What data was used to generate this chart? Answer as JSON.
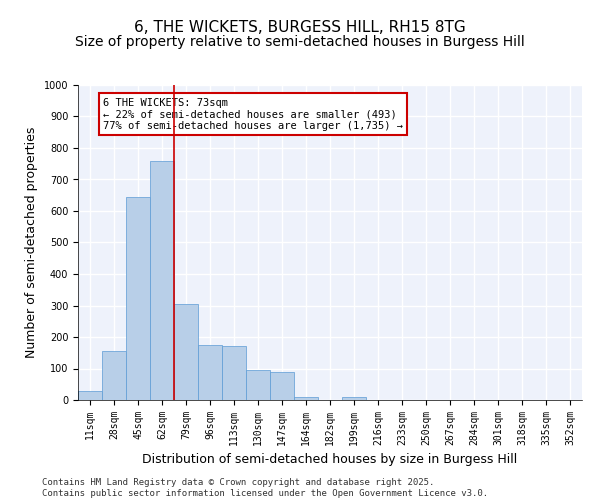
{
  "title1": "6, THE WICKETS, BURGESS HILL, RH15 8TG",
  "title2": "Size of property relative to semi-detached houses in Burgess Hill",
  "xlabel": "Distribution of semi-detached houses by size in Burgess Hill",
  "ylabel": "Number of semi-detached properties",
  "bin_labels": [
    "11sqm",
    "28sqm",
    "45sqm",
    "62sqm",
    "79sqm",
    "96sqm",
    "113sqm",
    "130sqm",
    "147sqm",
    "164sqm",
    "182sqm",
    "199sqm",
    "216sqm",
    "233sqm",
    "250sqm",
    "267sqm",
    "284sqm",
    "301sqm",
    "318sqm",
    "335sqm",
    "352sqm"
  ],
  "values": [
    30,
    155,
    645,
    760,
    305,
    175,
    170,
    95,
    90,
    10,
    0,
    10,
    0,
    0,
    0,
    0,
    0,
    0,
    0,
    0,
    0
  ],
  "bar_color": "#b8cfe8",
  "bar_edge_color": "#5b9bd5",
  "vline_color": "#cc0000",
  "vline_pos": 3.5,
  "annotation_text": "6 THE WICKETS: 73sqm\n← 22% of semi-detached houses are smaller (493)\n77% of semi-detached houses are larger (1,735) →",
  "annotation_box_color": "#cc0000",
  "ylim": [
    0,
    1000
  ],
  "yticks": [
    0,
    100,
    200,
    300,
    400,
    500,
    600,
    700,
    800,
    900,
    1000
  ],
  "footer": "Contains HM Land Registry data © Crown copyright and database right 2025.\nContains public sector information licensed under the Open Government Licence v3.0.",
  "background_color": "#eef2fb",
  "grid_color": "#ffffff",
  "title_fontsize": 11,
  "subtitle_fontsize": 10,
  "tick_fontsize": 7,
  "ylabel_fontsize": 9,
  "xlabel_fontsize": 9,
  "footer_fontsize": 6.5
}
